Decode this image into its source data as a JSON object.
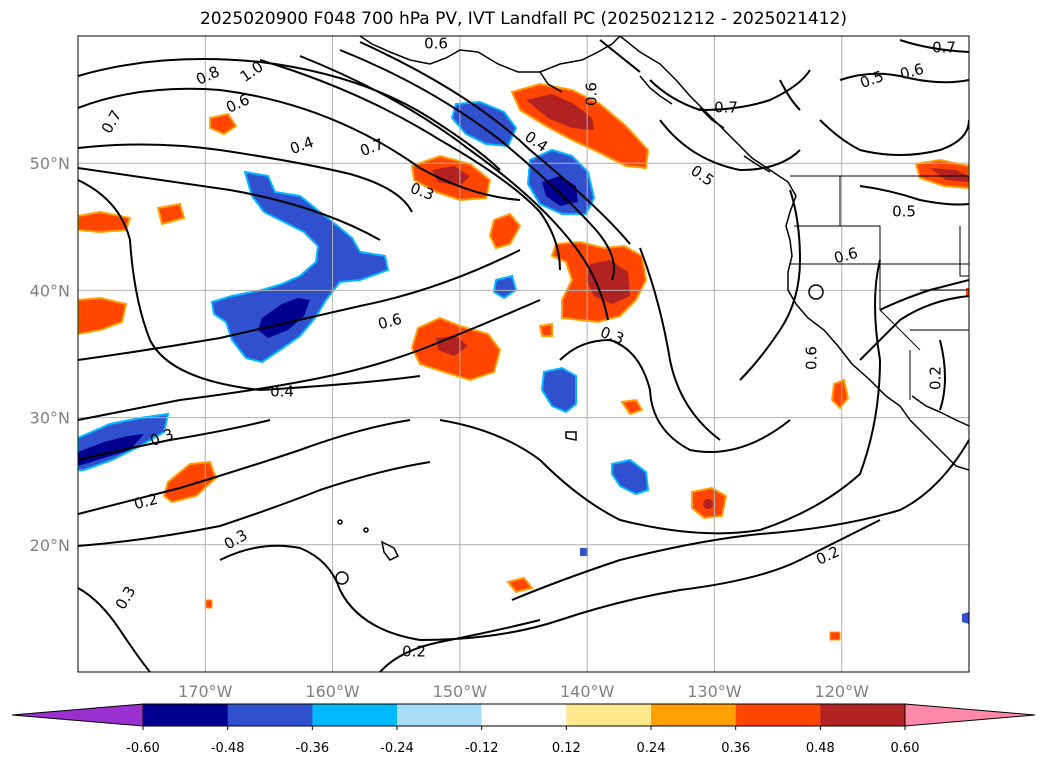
{
  "title": "2025020900 F048 700 hPa PV, IVT Landfall PC (2025021212 - 2025021412)",
  "map": {
    "lon_range": [
      -180,
      -110
    ],
    "lat_range": [
      10,
      60
    ],
    "lon_ticks": [
      -170,
      -160,
      -150,
      -140,
      -130,
      -120
    ],
    "lat_ticks": [
      20,
      30,
      40,
      50
    ],
    "lon_labels": [
      "170°W",
      "160°W",
      "150°W",
      "140°W",
      "130°W",
      "120°W"
    ],
    "lat_labels": [
      "20°N",
      "30°N",
      "40°N",
      "50°N"
    ],
    "grid": true
  },
  "contour_labels": [
    "1.0",
    "0.8",
    "0.7",
    "0.6",
    "0.4",
    "0.7",
    "0.3",
    "0.6",
    "0.4",
    "0.3",
    "0.2",
    "0.3",
    "0.3",
    "0.2",
    "0.4",
    "0.3",
    "0.5",
    "0.6",
    "0.7",
    "0.5",
    "0.6",
    "0.5",
    "0.6",
    "0.6",
    "0.2",
    "0.2",
    "0.6",
    "0.7"
  ],
  "colorbar": {
    "ticks": [
      "-0.60",
      "-0.48",
      "-0.36",
      "-0.24",
      "-0.12",
      "0.12",
      "0.24",
      "0.36",
      "0.48",
      "0.60"
    ],
    "colors": [
      "#9b30d0",
      "#000090",
      "#3050d0",
      "#00b8ff",
      "#a8dff8",
      "#ffffff",
      "#fde98c",
      "#ffa000",
      "#ff4500",
      "#b22222",
      "#ff88aa"
    ],
    "extend": "both"
  }
}
